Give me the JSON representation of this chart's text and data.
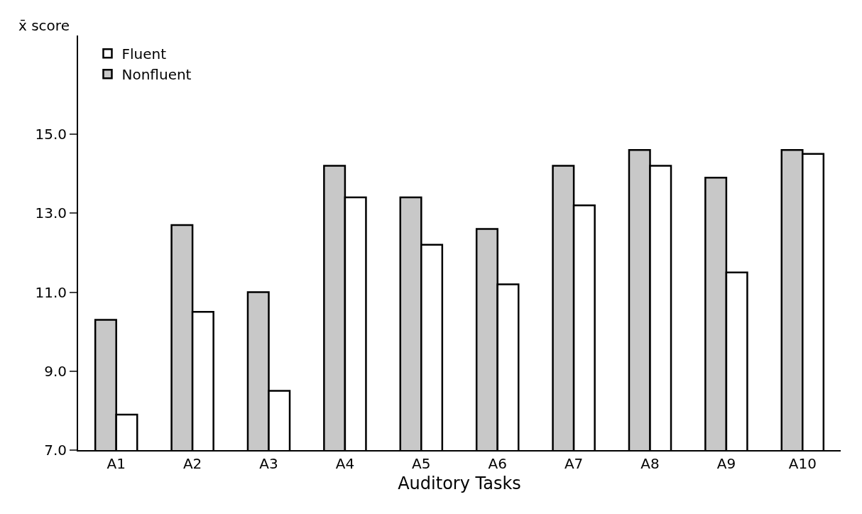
{
  "chart_data": {
    "type": "bar",
    "xlabel": "Auditory Tasks",
    "ylabel": "x̄ score",
    "categories": [
      "A1",
      "A2",
      "A3",
      "A4",
      "A5",
      "A6",
      "A7",
      "A8",
      "A9",
      "A10"
    ],
    "series": [
      {
        "name": "Nonfluent",
        "color": "#c8c8c8",
        "values": [
          10.3,
          12.7,
          11.0,
          14.2,
          13.4,
          12.6,
          14.2,
          14.6,
          13.9,
          14.6
        ]
      },
      {
        "name": "Fluent",
        "color": "#ffffff",
        "values": [
          7.9,
          10.5,
          8.5,
          13.4,
          12.2,
          11.2,
          13.2,
          14.2,
          11.5,
          14.5
        ]
      }
    ],
    "ylim": [
      7,
      17.5
    ],
    "yticks": [
      {
        "value": 7,
        "label": "7.0"
      },
      {
        "value": 9,
        "label": "9.0"
      },
      {
        "value": 11,
        "label": "11.0"
      },
      {
        "value": 13,
        "label": "13.0"
      },
      {
        "value": 15,
        "label": "15.0"
      }
    ],
    "legend": "top left"
  }
}
